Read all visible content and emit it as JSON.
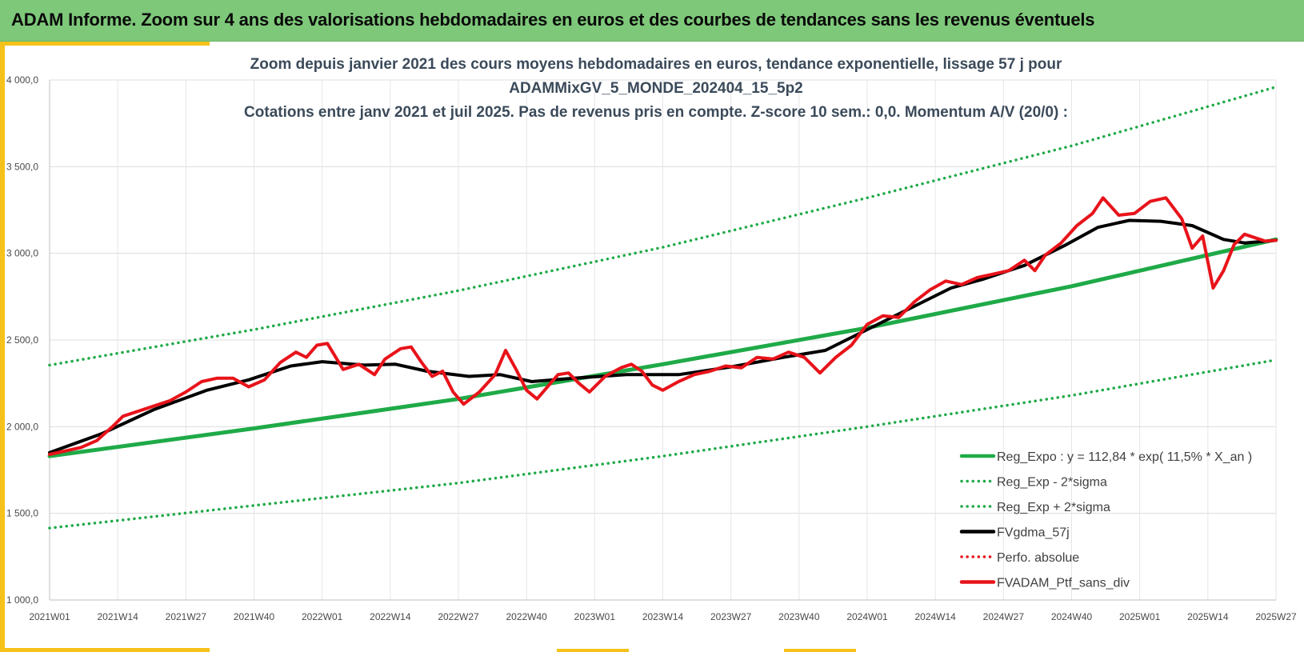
{
  "banner": {
    "title": "ADAM Informe. Zoom sur 4 ans des valorisations hebdomadaires en euros et des courbes de tendances sans les revenus éventuels"
  },
  "colors": {
    "banner_bg": "#7ec87a",
    "accent": "#f6c21a",
    "trend_green": "#1faa48",
    "portfolio_red": "#e8131a",
    "moving_avg_black": "#000000",
    "title_text": "#3b4a5a"
  },
  "chart_data": {
    "type": "line",
    "title_lines": [
      "Zoom depuis janvier 2021 des cours moyens hebdomadaires  en euros, tendance exponentielle, lissage 57 j pour",
      "ADAMMixGV_5_MONDE_202404_15_5p2",
      "Cotations  entre janv 2021 et juil 2025. Pas de revenus pris en compte. Z-score 10 sem.: 0,0. Momentum A/V (20/0) :"
    ],
    "xlabel": "",
    "ylabel": "",
    "ylim": [
      1000,
      4000
    ],
    "yticks": [
      "1 000,0",
      "1 500,0",
      "2 000,0",
      "2 500,0",
      "3 000,0",
      "3 500,0",
      "4 000,0"
    ],
    "ytick_values": [
      1000,
      1500,
      2000,
      2500,
      3000,
      3500,
      4000
    ],
    "xlim": [
      0,
      234
    ],
    "xticks": [
      "2021W01",
      "2021W14",
      "2021W27",
      "2021W40",
      "2022W01",
      "2022W14",
      "2022W27",
      "2022W40",
      "2023W01",
      "2023W14",
      "2023W27",
      "2023W40",
      "2024W01",
      "2024W14",
      "2024W27",
      "2024W40",
      "2025W01",
      "2025W14",
      "2025W27"
    ],
    "xtick_positions": [
      0,
      13,
      26,
      39,
      52,
      65,
      78,
      91,
      104,
      117,
      130,
      143,
      156,
      169,
      182,
      195,
      208,
      221,
      234
    ],
    "grid": true,
    "legend_position": "bottom-right",
    "series": [
      {
        "name": "Reg_Expo : y = 112,84 * exp( 11,5% *  X_an )",
        "style": "solid",
        "color": "#1faa48",
        "points": [
          [
            0,
            1830
          ],
          [
            39,
            1990
          ],
          [
            78,
            2160
          ],
          [
            117,
            2360
          ],
          [
            156,
            2570
          ],
          [
            195,
            2810
          ],
          [
            234,
            3080
          ]
        ]
      },
      {
        "name": "Reg_Exp - 2*sigma",
        "style": "dotted",
        "color": "#1faa48",
        "points": [
          [
            0,
            1415
          ],
          [
            39,
            1545
          ],
          [
            78,
            1675
          ],
          [
            117,
            1830
          ],
          [
            156,
            2000
          ],
          [
            195,
            2180
          ],
          [
            234,
            2385
          ]
        ]
      },
      {
        "name": "Reg_Exp + 2*sigma",
        "style": "dotted",
        "color": "#1faa48",
        "points": [
          [
            0,
            2355
          ],
          [
            39,
            2560
          ],
          [
            78,
            2785
          ],
          [
            117,
            3035
          ],
          [
            156,
            3320
          ],
          [
            195,
            3620
          ],
          [
            234,
            3960
          ]
        ]
      },
      {
        "name": "FVgdma_57j",
        "style": "solid",
        "color": "#000000",
        "points": [
          [
            0,
            1850
          ],
          [
            10,
            1960
          ],
          [
            20,
            2100
          ],
          [
            30,
            2210
          ],
          [
            38,
            2270
          ],
          [
            46,
            2350
          ],
          [
            52,
            2375
          ],
          [
            60,
            2355
          ],
          [
            66,
            2360
          ],
          [
            72,
            2320
          ],
          [
            80,
            2290
          ],
          [
            86,
            2300
          ],
          [
            92,
            2260
          ],
          [
            100,
            2280
          ],
          [
            110,
            2300
          ],
          [
            120,
            2300
          ],
          [
            130,
            2345
          ],
          [
            140,
            2400
          ],
          [
            148,
            2440
          ],
          [
            154,
            2530
          ],
          [
            160,
            2620
          ],
          [
            166,
            2710
          ],
          [
            172,
            2800
          ],
          [
            178,
            2850
          ],
          [
            186,
            2930
          ],
          [
            194,
            3050
          ],
          [
            200,
            3150
          ],
          [
            206,
            3190
          ],
          [
            212,
            3185
          ],
          [
            218,
            3160
          ],
          [
            224,
            3080
          ],
          [
            228,
            3060
          ],
          [
            234,
            3075
          ]
        ]
      },
      {
        "name": "Perfo. absolue",
        "style": "dotted",
        "color": "#e8131a",
        "points": []
      },
      {
        "name": "FVADAM_Ptf_sans_div",
        "style": "solid",
        "color": "#e8131a",
        "points": [
          [
            0,
            1840
          ],
          [
            3,
            1860
          ],
          [
            6,
            1880
          ],
          [
            9,
            1920
          ],
          [
            12,
            2000
          ],
          [
            14,
            2060
          ],
          [
            17,
            2090
          ],
          [
            20,
            2120
          ],
          [
            23,
            2150
          ],
          [
            26,
            2200
          ],
          [
            29,
            2260
          ],
          [
            32,
            2280
          ],
          [
            35,
            2280
          ],
          [
            38,
            2230
          ],
          [
            41,
            2270
          ],
          [
            44,
            2370
          ],
          [
            47,
            2430
          ],
          [
            49,
            2400
          ],
          [
            51,
            2470
          ],
          [
            53,
            2480
          ],
          [
            56,
            2330
          ],
          [
            59,
            2360
          ],
          [
            62,
            2300
          ],
          [
            64,
            2390
          ],
          [
            67,
            2450
          ],
          [
            69,
            2460
          ],
          [
            71,
            2370
          ],
          [
            73,
            2290
          ],
          [
            75,
            2320
          ],
          [
            77,
            2200
          ],
          [
            79,
            2130
          ],
          [
            82,
            2200
          ],
          [
            85,
            2300
          ],
          [
            87,
            2440
          ],
          [
            89,
            2330
          ],
          [
            91,
            2210
          ],
          [
            93,
            2160
          ],
          [
            95,
            2230
          ],
          [
            97,
            2300
          ],
          [
            99,
            2310
          ],
          [
            101,
            2250
          ],
          [
            103,
            2200
          ],
          [
            106,
            2290
          ],
          [
            109,
            2340
          ],
          [
            111,
            2360
          ],
          [
            113,
            2320
          ],
          [
            115,
            2240
          ],
          [
            117,
            2210
          ],
          [
            120,
            2260
          ],
          [
            123,
            2300
          ],
          [
            126,
            2320
          ],
          [
            129,
            2350
          ],
          [
            132,
            2340
          ],
          [
            135,
            2400
          ],
          [
            138,
            2390
          ],
          [
            141,
            2430
          ],
          [
            144,
            2400
          ],
          [
            147,
            2310
          ],
          [
            150,
            2400
          ],
          [
            153,
            2470
          ],
          [
            156,
            2590
          ],
          [
            159,
            2640
          ],
          [
            162,
            2630
          ],
          [
            165,
            2720
          ],
          [
            168,
            2790
          ],
          [
            171,
            2840
          ],
          [
            174,
            2820
          ],
          [
            177,
            2860
          ],
          [
            180,
            2880
          ],
          [
            183,
            2900
          ],
          [
            186,
            2960
          ],
          [
            188,
            2900
          ],
          [
            190,
            2990
          ],
          [
            193,
            3060
          ],
          [
            196,
            3160
          ],
          [
            199,
            3230
          ],
          [
            201,
            3320
          ],
          [
            204,
            3220
          ],
          [
            207,
            3230
          ],
          [
            210,
            3300
          ],
          [
            213,
            3320
          ],
          [
            216,
            3200
          ],
          [
            218,
            3030
          ],
          [
            220,
            3100
          ],
          [
            222,
            2800
          ],
          [
            224,
            2900
          ],
          [
            226,
            3050
          ],
          [
            228,
            3110
          ],
          [
            230,
            3090
          ],
          [
            232,
            3070
          ],
          [
            234,
            3075
          ]
        ]
      }
    ]
  }
}
